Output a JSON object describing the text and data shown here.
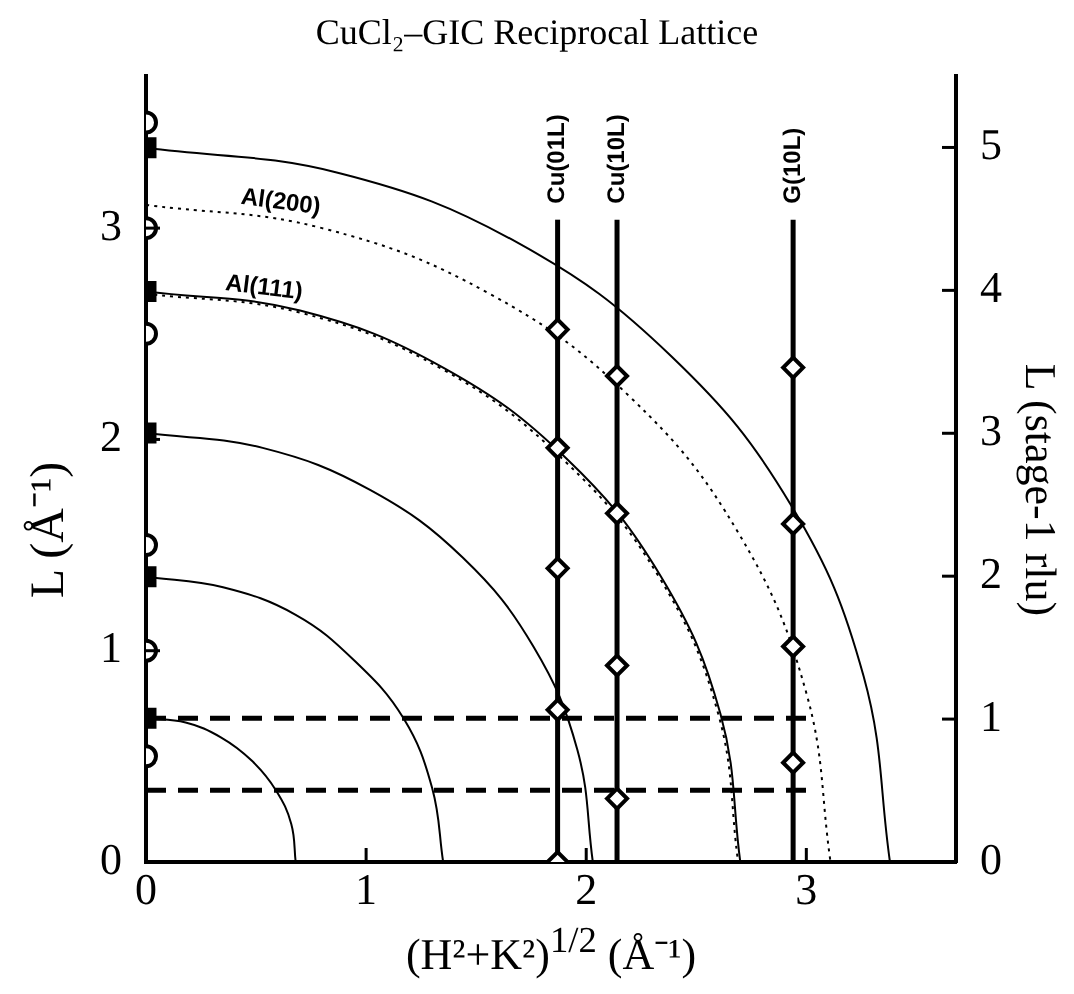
{
  "chart_data": {
    "type": "scatter",
    "title": "CuCl₂–GIC  Reciprocal Lattice",
    "xlabel": "(H²+K²)$^{1/2}$ (Å⁻¹)",
    "ylabel": "L (Å⁻¹)",
    "y2label": "L  (stage-1 rlu)",
    "xlim": [
      0,
      3.68
    ],
    "xticks": [
      0,
      1,
      2,
      3
    ],
    "ylim": [
      0,
      3.72
    ],
    "yticks": [
      0,
      1,
      2,
      3
    ],
    "y2lim": [
      0,
      5.5
    ],
    "y2ticks": [
      0,
      1,
      2,
      3,
      4,
      5
    ],
    "grid": false,
    "legend": false,
    "series": [
      {
        "marker": "square",
        "color": "#000000",
        "x": [
          0,
          0,
          0,
          0,
          0
        ],
        "values": [
          0.68,
          1.35,
          2.03,
          2.7,
          3.38
        ]
      },
      {
        "marker": "circle",
        "color": "#000000",
        "x": [
          0,
          0,
          0,
          0,
          0,
          0
        ],
        "values": [
          0.5,
          1,
          1.5,
          2.5,
          3,
          3.5
        ]
      },
      {
        "type": "line",
        "marker": "diamond",
        "line_style": "solid",
        "color": "#000000",
        "x": [
          1.87,
          1.87,
          1.87,
          1.87,
          1.87
        ],
        "values": [
          0,
          0.72,
          1.39,
          1.96,
          2.52
        ]
      },
      {
        "marker": "diamond",
        "color": "#000000",
        "x": [
          2.14,
          2.14,
          2.14,
          2.14
        ],
        "values": [
          0.3,
          0.93,
          1.65,
          2.3
        ]
      },
      {
        "marker": "diamond",
        "color": "#000000",
        "x": [
          2.94,
          2.94,
          2.94,
          2.94
        ],
        "values": [
          0.47,
          1.02,
          1.6,
          2.34
        ]
      },
      {
        "type": "line",
        "name": "Cu(01L)",
        "marker": "none",
        "line_style": "solid",
        "color": "#000000",
        "x": [
          1.87,
          1.87
        ],
        "values": [
          2.52,
          3.04
        ]
      },
      {
        "type": "line",
        "name": "Cu(10L)",
        "marker": "none",
        "line_style": "solid",
        "color": "#000000",
        "x": [
          2.14,
          2.14
        ],
        "values": [
          0,
          3.04
        ]
      },
      {
        "type": "line",
        "name": "G(10L)",
        "marker": "none",
        "line_style": "solid",
        "color": "#000000",
        "x": [
          2.94,
          2.94
        ],
        "values": [
          0,
          3.04
        ]
      },
      {
        "type": "line",
        "marker": "none",
        "line_style": "dashed",
        "color": "#000000",
        "x": [
          0,
          3.0
        ],
        "values": [
          0.68,
          0.68
        ]
      },
      {
        "type": "line",
        "marker": "none",
        "line_style": "dashed",
        "color": "#000000",
        "x": [
          0,
          3.0
        ],
        "values": [
          0.34,
          0.34
        ]
      },
      {
        "type": "line",
        "marker": "none",
        "line_style": "solid",
        "color": "#000000",
        "x": [
          0,
          0.18,
          0.34,
          0.48,
          0.59,
          0.66,
          0.68
        ],
        "values": [
          0.68,
          0.66,
          0.59,
          0.48,
          0.34,
          0.18,
          0
        ]
      },
      {
        "type": "line",
        "marker": "none",
        "line_style": "solid",
        "color": "#000000",
        "x": [
          0,
          0.35,
          0.68,
          0.95,
          1.17,
          1.3,
          1.35
        ],
        "values": [
          1.35,
          1.3,
          1.17,
          0.95,
          0.68,
          0.35,
          0
        ]
      },
      {
        "type": "line",
        "marker": "none",
        "line_style": "solid",
        "color": "#000000",
        "x": [
          0,
          0.53,
          1.02,
          1.44,
          1.76,
          1.96,
          2.03
        ],
        "values": [
          2.03,
          1.96,
          1.76,
          1.44,
          1.02,
          0.53,
          0
        ]
      },
      {
        "type": "line",
        "marker": "none",
        "line_style": "solid",
        "color": "#000000",
        "x": [
          0,
          0.7,
          1.35,
          1.91,
          2.34,
          2.61,
          2.7
        ],
        "values": [
          2.7,
          2.61,
          2.34,
          1.91,
          1.35,
          0.7,
          0
        ]
      },
      {
        "type": "line",
        "marker": "none",
        "line_style": "solid",
        "color": "#000000",
        "x": [
          0,
          0.88,
          1.69,
          2.39,
          2.93,
          3.26,
          3.38
        ],
        "values": [
          3.38,
          3.26,
          2.93,
          2.39,
          1.69,
          0.88,
          0
        ]
      },
      {
        "type": "line",
        "name": "Al(111)",
        "marker": "none",
        "line_style": "dotted",
        "color": "#000000",
        "x": [
          0,
          0.7,
          1.35,
          1.9,
          2.33,
          2.6,
          2.69
        ],
        "values": [
          2.69,
          2.6,
          2.33,
          1.9,
          1.35,
          0.7,
          0
        ]
      },
      {
        "type": "line",
        "name": "Al(200)",
        "marker": "none",
        "line_style": "dotted",
        "color": "#000000",
        "x": [
          0,
          0.8,
          1.56,
          2.2,
          2.69,
          3.0,
          3.11
        ],
        "values": [
          3.11,
          3.0,
          2.69,
          2.2,
          1.56,
          0.8,
          0
        ]
      }
    ]
  }
}
